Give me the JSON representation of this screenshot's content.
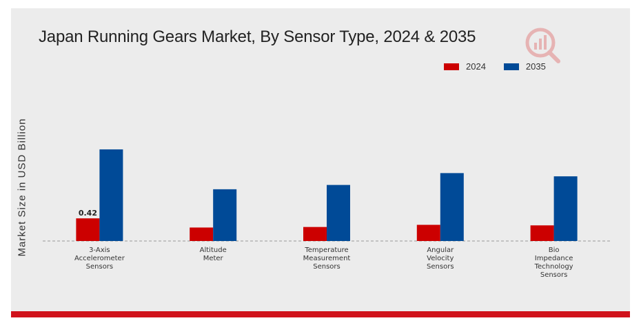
{
  "chart_data": {
    "type": "bar",
    "title": "Japan Running Gears Market, By Sensor Type, 2024 & 2035",
    "ylabel": "Market Size in USD Billion",
    "xlabel": "",
    "categories": [
      "3-Axis Accelerometer Sensors",
      "Altitude Meter",
      "Temperature Measurement Sensors",
      "Angular Velocity Sensors",
      "Bio Impedance Technology Sensors"
    ],
    "category_lines": [
      [
        "3-Axis",
        "Accelerometer",
        "Sensors"
      ],
      [
        "Altitude",
        "Meter"
      ],
      [
        "Temperature",
        "Measurement",
        "Sensors"
      ],
      [
        "Angular",
        "Velocity",
        "Sensors"
      ],
      [
        "Bio",
        "Impedance",
        "Technology",
        "Sensors"
      ]
    ],
    "series": [
      {
        "name": "2024",
        "color": "#cc0000",
        "values": [
          0.42,
          0.25,
          0.26,
          0.3,
          0.29
        ],
        "data_labels": [
          "0.42",
          null,
          null,
          null,
          null
        ]
      },
      {
        "name": "2035",
        "color": "#004a97",
        "values": [
          1.7,
          0.96,
          1.04,
          1.26,
          1.2
        ]
      }
    ],
    "ylim": [
      0,
      2.3
    ],
    "legend_position": "top-right",
    "grid": false,
    "baseline_style": "dashed"
  }
}
